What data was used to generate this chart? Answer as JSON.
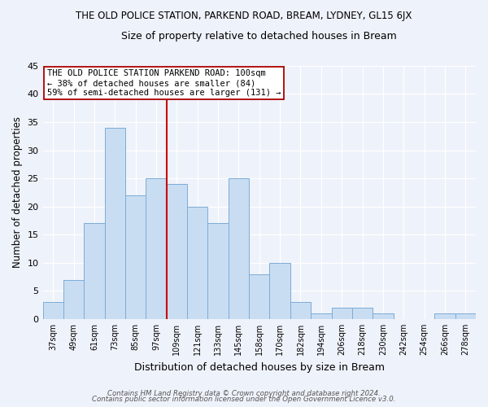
{
  "title": "THE OLD POLICE STATION, PARKEND ROAD, BREAM, LYDNEY, GL15 6JX",
  "subtitle": "Size of property relative to detached houses in Bream",
  "xlabel": "Distribution of detached houses by size in Bream",
  "ylabel": "Number of detached properties",
  "bar_labels": [
    "37sqm",
    "49sqm",
    "61sqm",
    "73sqm",
    "85sqm",
    "97sqm",
    "109sqm",
    "121sqm",
    "133sqm",
    "145sqm",
    "158sqm",
    "170sqm",
    "182sqm",
    "194sqm",
    "206sqm",
    "218sqm",
    "230sqm",
    "242sqm",
    "254sqm",
    "266sqm",
    "278sqm"
  ],
  "bar_values": [
    3,
    7,
    17,
    34,
    22,
    25,
    24,
    20,
    17,
    25,
    8,
    10,
    3,
    1,
    2,
    2,
    1,
    0,
    0,
    1,
    1
  ],
  "bar_color": "#c9ddf2",
  "bar_edge_color": "#7bacd6",
  "vline_x": 5.5,
  "vline_color": "#cc0000",
  "annotation_title": "THE OLD POLICE STATION PARKEND ROAD: 100sqm",
  "annotation_line1": "← 38% of detached houses are smaller (84)",
  "annotation_line2": "59% of semi-detached houses are larger (131) →",
  "annotation_box_color": "#ffffff",
  "annotation_box_edge": "#aa0000",
  "ylim": [
    0,
    45
  ],
  "yticks": [
    0,
    5,
    10,
    15,
    20,
    25,
    30,
    35,
    40,
    45
  ],
  "footer1": "Contains HM Land Registry data © Crown copyright and database right 2024.",
  "footer2": "Contains public sector information licensed under the Open Government Licence v3.0.",
  "background_color": "#eef2fa"
}
